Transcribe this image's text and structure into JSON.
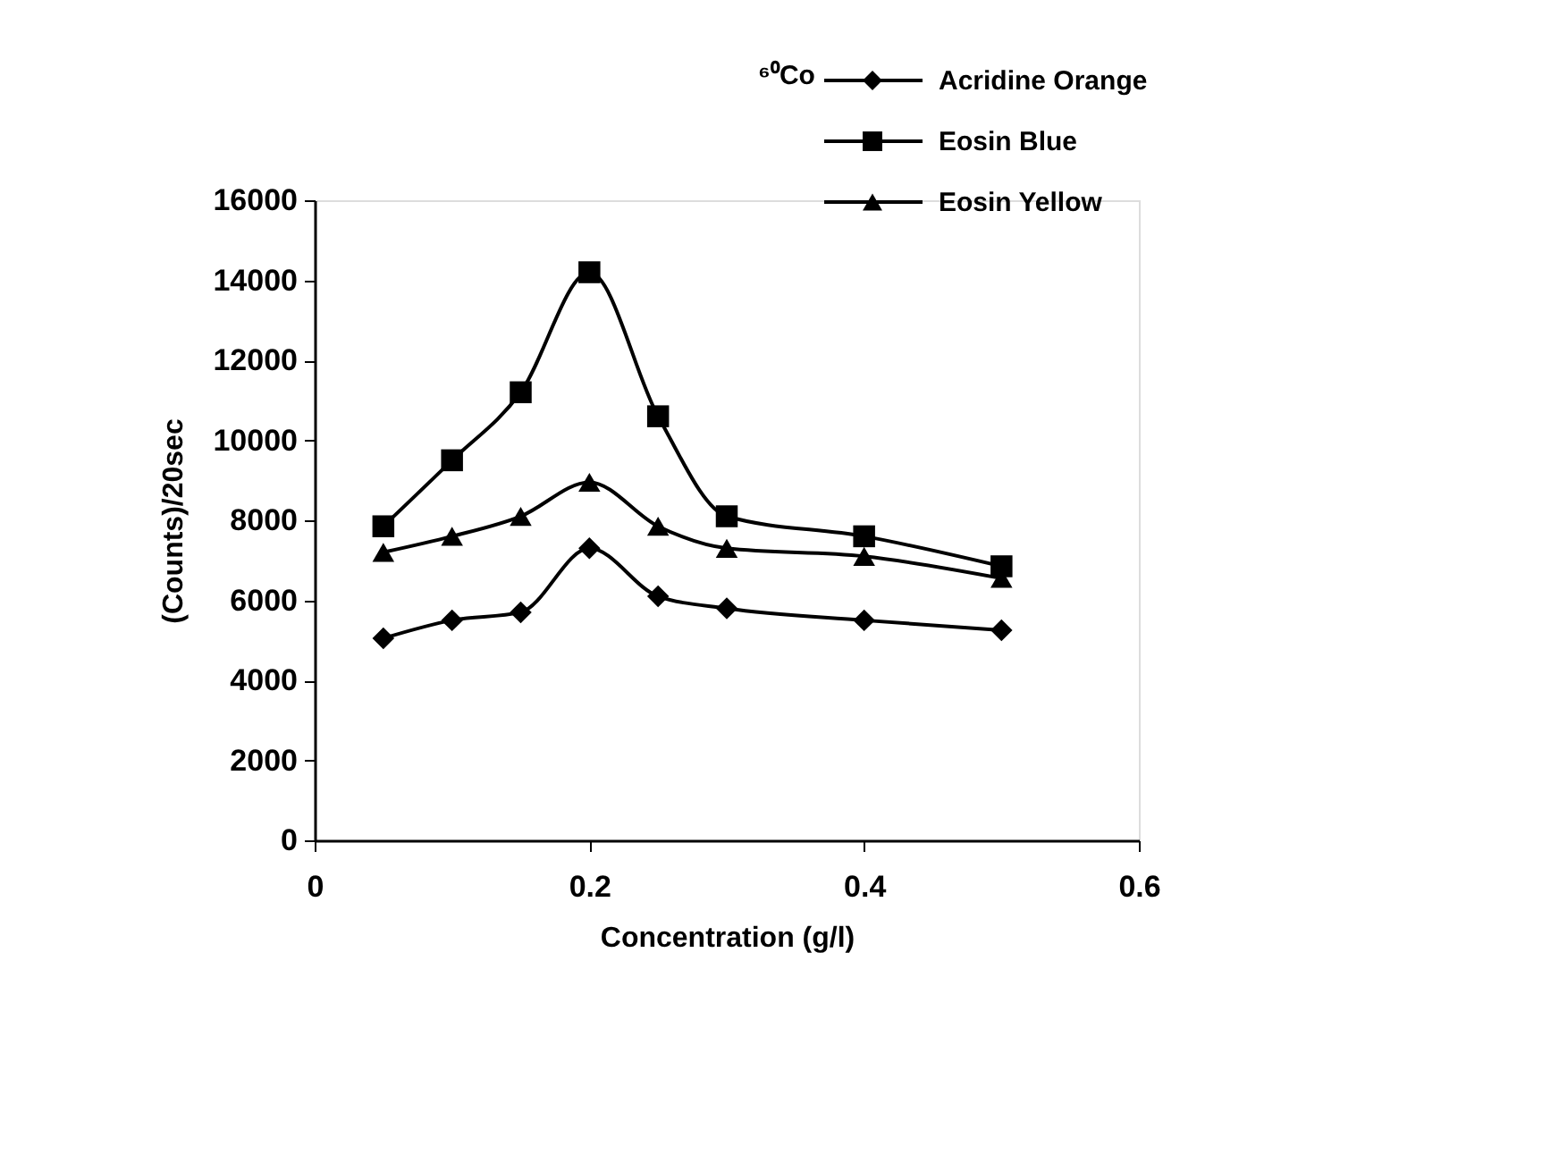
{
  "chart_data": {
    "type": "line",
    "title": "⁶⁰Co",
    "xlabel": "Concentration (g/l)",
    "ylabel": "(Counts)/20sec",
    "x": [
      0.05,
      0.1,
      0.15,
      0.2,
      0.25,
      0.3,
      0.4,
      0.5
    ],
    "series": [
      {
        "name": "Acridine Orange",
        "color": "#000000",
        "marker": "diamond",
        "values": [
          5050,
          5500,
          5700,
          7300,
          6100,
          5800,
          5500,
          5250
        ]
      },
      {
        "name": "Eosin Blue",
        "color": "#000000",
        "marker": "square",
        "values": [
          7850,
          9500,
          11200,
          14200,
          10600,
          8100,
          7600,
          6850
        ]
      },
      {
        "name": "Eosin Yellow",
        "color": "#000000",
        "marker": "triangle",
        "values": [
          7200,
          7600,
          8100,
          8950,
          7850,
          7300,
          7100,
          6550
        ]
      }
    ],
    "xlim": [
      0,
      0.6
    ],
    "xticks": [
      0,
      0.2,
      0.4,
      0.6
    ],
    "ylim": [
      0,
      16000
    ],
    "yticks": [
      0,
      2000,
      4000,
      6000,
      8000,
      10000,
      12000,
      14000,
      16000
    ],
    "grid": false,
    "legend": "top right",
    "line_style": "solid"
  }
}
